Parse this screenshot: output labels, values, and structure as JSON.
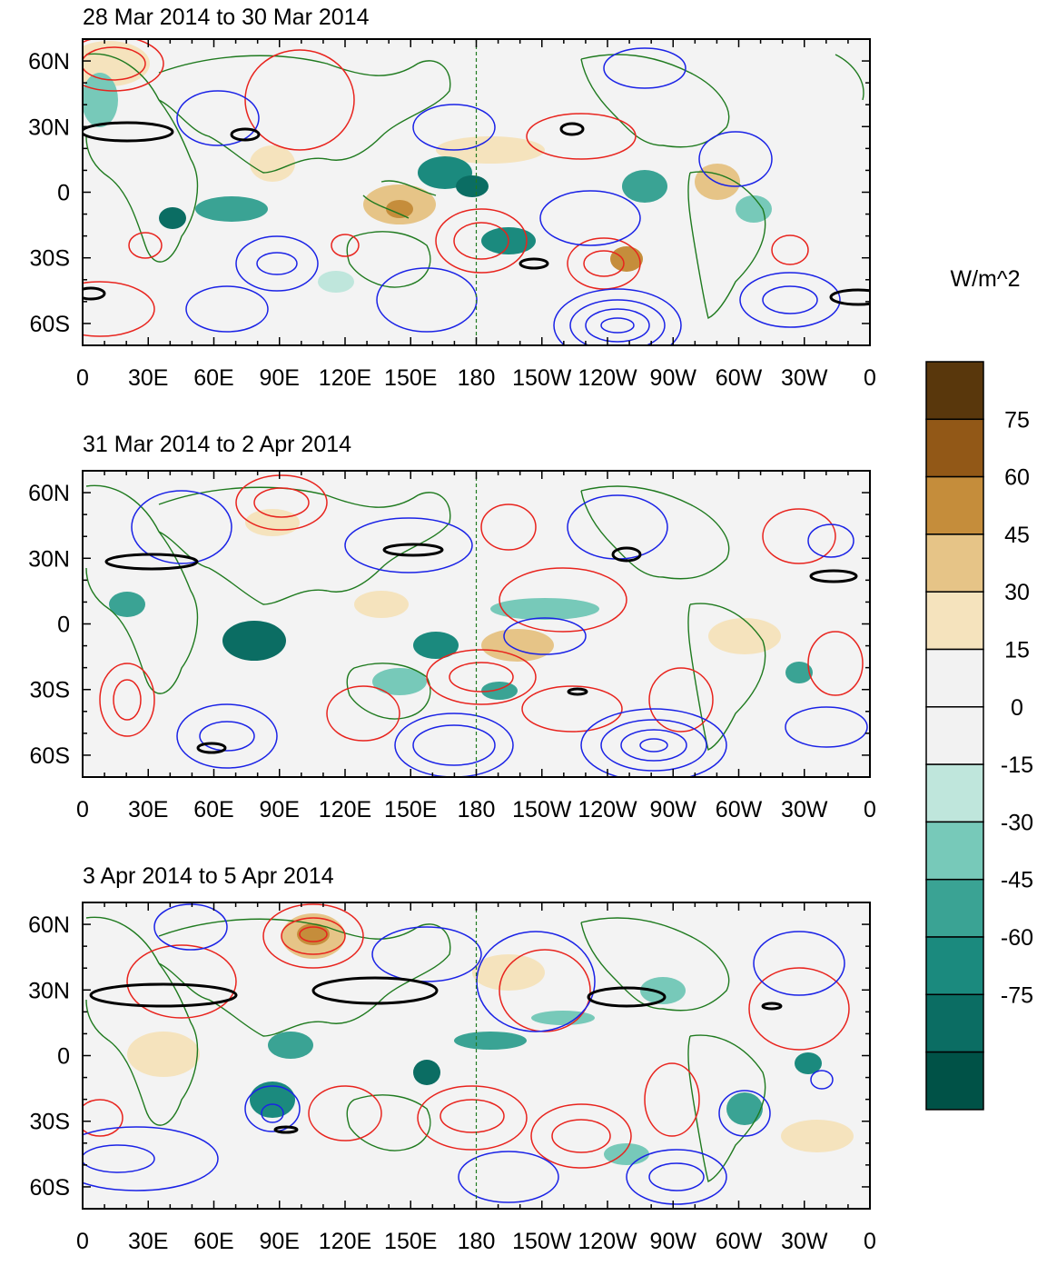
{
  "figure": {
    "colorbar_label": "W/m^2",
    "colorbar_colors": [
      "#005247",
      "#0b6d63",
      "#1b8a7e",
      "#3aa394",
      "#77c9b9",
      "#bfe6dc",
      "#f2f2f2",
      "#f2f2f2",
      "#f5e3bd",
      "#e6c487",
      "#c58d3b",
      "#925817",
      "#59370c"
    ],
    "colorbar_labels": [
      "75",
      "60",
      "45",
      "30",
      "15",
      "0",
      "-15",
      "-30",
      "-45",
      "-60",
      "-75"
    ],
    "lon_labels": [
      "0",
      "30E",
      "60E",
      "90E",
      "120E",
      "150E",
      "180",
      "150W",
      "120W",
      "90W",
      "60W",
      "30W",
      "0"
    ],
    "lat_labels": [
      "60N",
      "30N",
      "0",
      "30S",
      "60S"
    ]
  },
  "chart_data": [
    {
      "type": "heatmap",
      "title": "28 Mar 2014 to 30 Mar 2014",
      "units": "W/m^2",
      "x_range": [
        0,
        360
      ],
      "y_range": [
        -70,
        70
      ],
      "xlabel": "",
      "ylabel": "",
      "contour_colors": {
        "positive": "#e8231d",
        "negative": "#1a22e6",
        "zero": "#000000"
      }
    },
    {
      "type": "heatmap",
      "title": "31 Mar 2014 to 2 Apr 2014",
      "units": "W/m^2",
      "x_range": [
        0,
        360
      ],
      "y_range": [
        -70,
        70
      ],
      "xlabel": "",
      "ylabel": "",
      "contour_colors": {
        "positive": "#e8231d",
        "negative": "#1a22e6",
        "zero": "#000000"
      }
    },
    {
      "type": "heatmap",
      "title": "3 Apr 2014 to 5 Apr 2014",
      "units": "W/m^2",
      "x_range": [
        0,
        360
      ],
      "y_range": [
        -70,
        70
      ],
      "xlabel": "",
      "ylabel": "",
      "contour_colors": {
        "positive": "#e8231d",
        "negative": "#1a22e6",
        "zero": "#000000"
      }
    }
  ]
}
